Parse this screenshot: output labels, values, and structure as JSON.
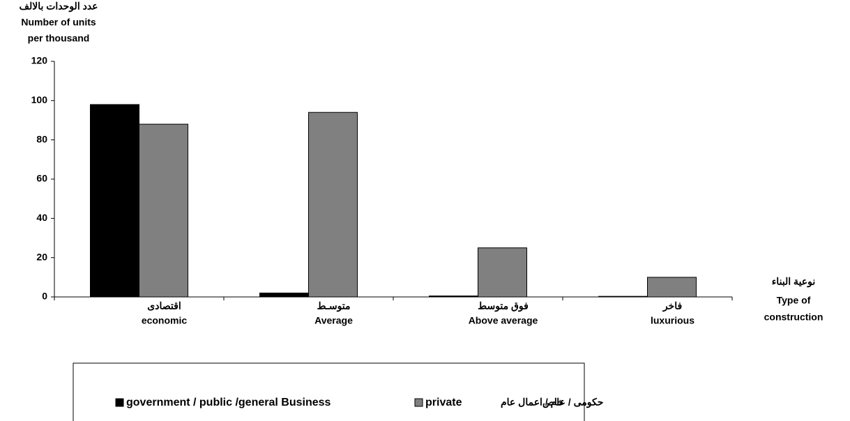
{
  "chart_data": {
    "type": "bar",
    "ylabel": [
      "عدد الوحدات بالالف",
      "Number of units",
      "per thousand"
    ],
    "xlabel": [
      "نوعية البناء",
      "Type of",
      "construction"
    ],
    "categories": [
      [
        "اقتصادى",
        "economic"
      ],
      [
        "متوسـط",
        "Average"
      ],
      [
        "فوق متوسط",
        "Above average"
      ],
      [
        "فاخر",
        "luxurious"
      ]
    ],
    "series": [
      {
        "name": "government / public /general Business",
        "name_ar": "حكومى / عام / اعمال عام",
        "color": "#000000",
        "values": [
          98,
          2,
          0.5,
          0.3
        ]
      },
      {
        "name": "private",
        "name_ar": "خاص",
        "color": "#808080",
        "values": [
          88,
          94,
          25,
          10
        ]
      }
    ],
    "ylim": [
      0,
      120
    ],
    "yticks": [
      0,
      20,
      40,
      60,
      80,
      100,
      120
    ]
  }
}
